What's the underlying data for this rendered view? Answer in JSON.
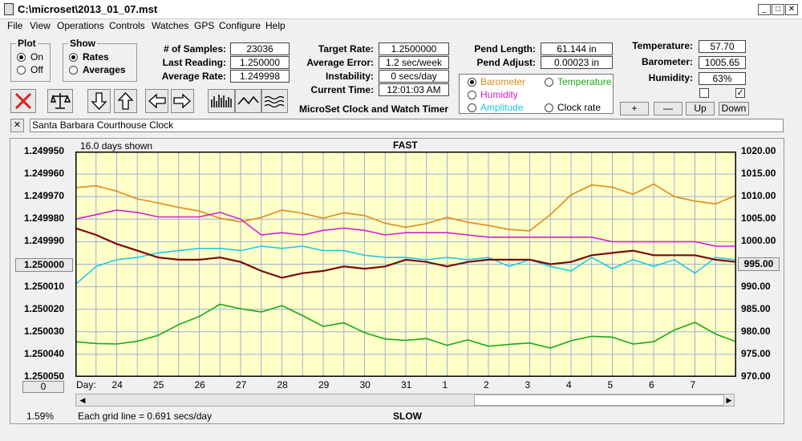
{
  "window": {
    "title": "C:\\microset\\2013_01_07.mst"
  },
  "menu": [
    "File",
    "View",
    "Operations",
    "Controls",
    "Watches",
    "GPS",
    "Configure",
    "Help"
  ],
  "plot_group": {
    "title": "Plot",
    "on_label": "On",
    "off_label": "Off",
    "selected": "On"
  },
  "show_group": {
    "title": "Show",
    "rates_label": "Rates",
    "averages_label": "Averages",
    "selected": "Rates"
  },
  "stats": {
    "samples_label": "# of Samples:",
    "samples": "23036",
    "last_reading_label": "Last Reading:",
    "last_reading": "1.250000",
    "average_rate_label": "Average Rate:",
    "average_rate": "1.249998",
    "target_rate_label": "Target Rate:",
    "target_rate": "1.2500000",
    "average_error_label": "Average Error:",
    "average_error": "1.2 sec/week",
    "instability_label": "Instability:",
    "instability": "0 secs/day",
    "current_time_label": "Current Time:",
    "current_time": "12:01:03 AM",
    "app_caption": "MicroSet Clock and Watch Timer",
    "pend_length_label": "Pend Length:",
    "pend_length": "61.144 in",
    "pend_adjust_label": "Pend Adjust:",
    "pend_adjust": "0.00023 in",
    "temperature_label": "Temperature:",
    "temperature": "57.70",
    "barometer_label": "Barometer:",
    "barometer": "1005.65",
    "humidity_label": "Humidity:",
    "humidity": "63%"
  },
  "sensor_select": {
    "barometer": "Barometer",
    "temperature": "Temperature",
    "humidity": "Humidity",
    "amplitude": "Amplitude",
    "clock_rate": "Clock rate",
    "selected": "Barometer",
    "colors": {
      "barometer": "#e08a1a",
      "temperature": "#18a818",
      "humidity": "#d020d0",
      "amplitude": "#20c8e8",
      "clock_rate": "#000000"
    }
  },
  "scale_buttons": {
    "plus": "+",
    "minus": "—",
    "up": "Up",
    "down": "Down"
  },
  "checkboxes": {
    "left_checked": false,
    "right_checked": true
  },
  "clock_name": "Santa Barbara Courthouse Clock",
  "close_small": "✕",
  "toolbar_icons": [
    "close-icon",
    "balance-scale-icon",
    "arrow-down-icon",
    "arrow-up-icon",
    "arrow-left-icon",
    "arrow-right-icon",
    "bar-plot-icon",
    "line-plot-icon",
    "wave-plot-icon"
  ],
  "chart_data": {
    "type": "line",
    "title_top": "FAST",
    "title_bottom": "SLOW",
    "days_shown": "16.0 days shown",
    "grid_note": "Each grid line = 0.691 secs/day",
    "percent": "1.59%",
    "day_label": "Day:",
    "day_ticks": [
      "24",
      "25",
      "26",
      "27",
      "28",
      "29",
      "30",
      "31",
      "1",
      "2",
      "3",
      "4",
      "5",
      "6",
      "7"
    ],
    "left_ticks": [
      "1.249950",
      "1.249960",
      "1.249970",
      "1.249980",
      "1.249990",
      "1.250000",
      "1.250010",
      "1.250020",
      "1.250030",
      "1.250040",
      "1.250050"
    ],
    "right_ticks": [
      "1020.00",
      "1015.00",
      "1010.00",
      "1005.00",
      "1000.00",
      "995.00",
      "990.00",
      "985.00",
      "980.00",
      "975.00",
      "970.00"
    ],
    "left_center_value": "1.250000",
    "right_center_value": "995.00",
    "bottom_left_value": "0",
    "ylim_left": [
      1.24995,
      1.25005
    ],
    "ylim_right": [
      970,
      1020
    ],
    "xlim_days": [
      0,
      16
    ],
    "series": [
      {
        "name": "Barometer",
        "axis": "right",
        "color": "#e08a1a",
        "step": 0.5,
        "values": [
          1012.0,
          1012.4,
          1011.2,
          1009.5,
          1008.6,
          1007.6,
          1006.8,
          1005.2,
          1004.4,
          1005.4,
          1007.0,
          1006.3,
          1005.2,
          1006.4,
          1005.8,
          1004.1,
          1003.2,
          1004.0,
          1005.4,
          1004.3,
          1003.6,
          1002.7,
          1002.4,
          1006.0,
          1010.4,
          1012.6,
          1012.1,
          1010.5,
          1012.8,
          1010.0,
          1009.0,
          1008.4,
          1010.3,
          1011.3,
          1010.8,
          1012.6,
          1012.9,
          1013.8,
          1011.2,
          1009.2,
          1006.8,
          1007.0,
          1004.3,
          1005.2,
          1007.8,
          1005.2,
          1005.3
        ]
      },
      {
        "name": "Humidity",
        "axis": "left",
        "color": "#d020d0",
        "step": 0.5,
        "values": [
          1.24998,
          1.249978,
          1.249976,
          1.249977,
          1.249979,
          1.249979,
          1.249979,
          1.249977,
          1.24998,
          1.249987,
          1.249986,
          1.249987,
          1.249985,
          1.249984,
          1.249985,
          1.249987,
          1.249986,
          1.249986,
          1.249986,
          1.249987,
          1.249988,
          1.249988,
          1.249988,
          1.249988,
          1.249988,
          1.249988,
          1.24999,
          1.24999,
          1.24999,
          1.24999,
          1.24999,
          1.249992,
          1.249992,
          1.249993,
          1.249996,
          1.250001,
          1.249995,
          1.249999,
          1.250006,
          1.249997,
          1.249997,
          1.249998,
          1.249998,
          1.249991,
          1.249988,
          1.249985,
          1.249986,
          1.249987,
          1.249987
        ]
      },
      {
        "name": "Amplitude",
        "axis": "left",
        "color": "#20c8e8",
        "step": 0.5,
        "values": [
          1.250009,
          1.250001,
          1.249998,
          1.249997,
          1.249995,
          1.249994,
          1.249993,
          1.249993,
          1.249994,
          1.249992,
          1.249993,
          1.249992,
          1.249994,
          1.249994,
          1.249996,
          1.249997,
          1.249997,
          1.249998,
          1.249997,
          1.249998,
          1.249997,
          1.250001,
          1.249998,
          1.250001,
          1.250003,
          1.249997,
          1.250002,
          1.249998,
          1.250001,
          1.249998,
          1.250004,
          1.249997,
          1.249998,
          1.249997,
          1.249999,
          1.249996,
          1.249999,
          1.250002,
          1.249998,
          1.249998,
          1.250001,
          1.250001,
          1.249999,
          1.249996,
          1.249997
        ]
      },
      {
        "name": "Temperature",
        "axis": "right",
        "color": "#18a818",
        "step": 0.5,
        "values": [
          977.8,
          977.4,
          977.3,
          977.9,
          979.2,
          981.6,
          983.4,
          986.1,
          985.1,
          984.4,
          985.8,
          983.6,
          981.2,
          982.0,
          979.8,
          978.4,
          978.1,
          978.5,
          977.0,
          978.2,
          976.8,
          977.2,
          977.5,
          976.4,
          978.0,
          979.0,
          978.8,
          977.3,
          977.8,
          980.4,
          982.1,
          979.5,
          977.8,
          980.0,
          982.2,
          981.0,
          983.0,
          985.2,
          982.8,
          981.0,
          982.2,
          983.6,
          981.5,
          980.0,
          980.6,
          977.4,
          977.0,
          980.0,
          981.9
        ]
      },
      {
        "name": "Clock rate",
        "axis": "left",
        "color": "#7a0a0a",
        "step": 0.5,
        "values": [
          1.249984,
          1.249987,
          1.249991,
          1.249994,
          1.249997,
          1.249998,
          1.249998,
          1.249997,
          1.249999,
          1.250003,
          1.250006,
          1.250004,
          1.250003,
          1.250001,
          1.250002,
          1.250001,
          1.249998,
          1.249999,
          1.250001,
          1.249999,
          1.249998,
          1.249998,
          1.249998,
          1.25,
          1.249999,
          1.249996,
          1.249995,
          1.249994,
          1.249996,
          1.249996,
          1.249996,
          1.249998,
          1.249999,
          1.249997,
          1.249998,
          1.249997,
          1.249997,
          1.249997,
          1.249998,
          1.249997,
          1.249997,
          1.249998,
          1.249998,
          1.249999,
          1.249997,
          1.249998,
          1.249998
        ]
      }
    ]
  }
}
